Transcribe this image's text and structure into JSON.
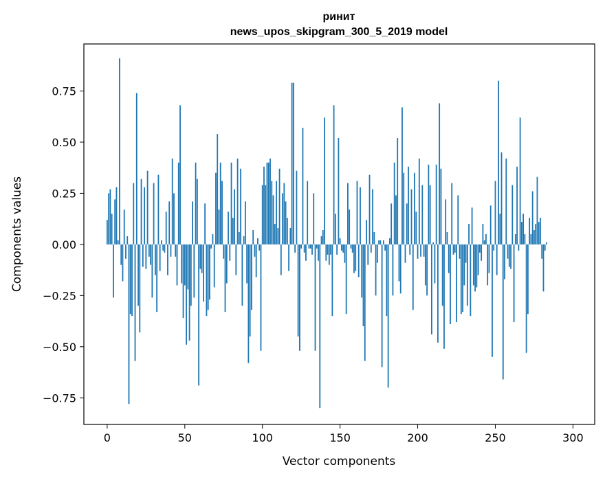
{
  "chart_data": {
    "type": "bar",
    "title": "ринит",
    "subtitle": "news_upos_skipgram_300_5_2019 model",
    "xlabel": "Vector components",
    "ylabel": "Components values",
    "xlim": [
      -15,
      314
    ],
    "ylim": [
      -0.88,
      0.98
    ],
    "x_ticks": [
      0,
      50,
      100,
      150,
      200,
      250,
      300
    ],
    "x_tick_labels": [
      "0",
      "50",
      "100",
      "150",
      "200",
      "250",
      "300"
    ],
    "y_ticks": [
      -0.75,
      -0.5,
      -0.25,
      0.0,
      0.25,
      0.5,
      0.75
    ],
    "y_tick_labels": [
      "−0.75",
      "−0.50",
      "−0.25",
      "0.00",
      "0.25",
      "0.50",
      "0.75"
    ],
    "bar_color": "#1f77b4",
    "series": [
      {
        "name": "components",
        "values": [
          0.12,
          0.25,
          0.27,
          0.15,
          -0.26,
          0.22,
          0.28,
          0.02,
          0.91,
          -0.1,
          -0.18,
          0.17,
          -0.07,
          0.04,
          -0.78,
          -0.34,
          -0.35,
          0.3,
          -0.57,
          0.74,
          -0.3,
          -0.43,
          0.32,
          -0.11,
          0.28,
          -0.12,
          0.36,
          -0.06,
          -0.1,
          -0.26,
          0.3,
          -0.15,
          -0.33,
          0.34,
          -0.13,
          0.02,
          -0.03,
          -0.04,
          0.16,
          -0.15,
          0.21,
          -0.06,
          0.42,
          0.25,
          -0.06,
          -0.2,
          0.4,
          0.68,
          -0.19,
          -0.36,
          -0.2,
          -0.49,
          -0.22,
          -0.47,
          -0.3,
          0.21,
          -0.26,
          0.4,
          0.32,
          -0.69,
          -0.12,
          -0.14,
          -0.28,
          0.2,
          -0.35,
          -0.32,
          -0.27,
          -0.02,
          0.05,
          -0.21,
          0.35,
          0.54,
          0.17,
          0.4,
          0.31,
          -0.07,
          -0.33,
          -0.19,
          0.16,
          -0.08,
          0.4,
          0.13,
          0.27,
          -0.15,
          0.42,
          0.06,
          0.37,
          -0.3,
          0.04,
          0.21,
          -0.19,
          -0.58,
          -0.45,
          -0.32,
          0.07,
          -0.06,
          -0.16,
          0.03,
          -0.03,
          -0.52,
          0.29,
          0.38,
          0.29,
          0.4,
          0.4,
          0.42,
          0.31,
          0.24,
          0.1,
          0.31,
          0.08,
          0.37,
          -0.15,
          0.25,
          0.3,
          0.21,
          0.13,
          -0.13,
          0.08,
          0.79,
          0.79,
          -0.04,
          0.36,
          -0.45,
          -0.52,
          -0.02,
          0.57,
          -0.04,
          -0.08,
          0.31,
          -0.02,
          -0.02,
          -0.05,
          0.25,
          -0.52,
          -0.02,
          -0.08,
          -0.8,
          0.04,
          0.07,
          0.62,
          -0.08,
          -0.05,
          -0.1,
          -0.05,
          -0.35,
          0.68,
          0.15,
          -0.05,
          0.52,
          0.03,
          -0.03,
          -0.04,
          -0.09,
          -0.34,
          0.3,
          0.17,
          -0.02,
          -0.04,
          -0.14,
          -0.13,
          0.31,
          -0.16,
          0.28,
          -0.26,
          -0.4,
          -0.57,
          0.12,
          -0.1,
          0.34,
          -0.04,
          0.27,
          0.06,
          -0.25,
          -0.09,
          0.02,
          0.02,
          -0.6,
          0.02,
          -0.03,
          -0.35,
          -0.7,
          0.03,
          0.2,
          -0.25,
          0.4,
          0.24,
          0.52,
          -0.18,
          -0.24,
          0.67,
          0.35,
          -0.09,
          0.2,
          0.38,
          -0.05,
          0.27,
          -0.32,
          0.35,
          0.16,
          -0.07,
          0.42,
          -0.06,
          0.29,
          -0.06,
          -0.2,
          -0.25,
          0.39,
          0.29,
          -0.44,
          0.01,
          -0.19,
          0.39,
          -0.48,
          0.69,
          0.37,
          -0.3,
          -0.51,
          0.22,
          0.06,
          -0.14,
          -0.39,
          0.3,
          -0.05,
          -0.04,
          -0.38,
          0.24,
          -0.07,
          -0.34,
          -0.33,
          -0.2,
          -0.09,
          -0.3,
          0.1,
          -0.35,
          0.18,
          -0.2,
          -0.23,
          -0.21,
          -0.15,
          -0.04,
          -0.08,
          0.1,
          0.02,
          0.05,
          -0.2,
          -0.14,
          0.19,
          -0.55,
          -0.03,
          0.31,
          -0.15,
          0.8,
          0.15,
          0.45,
          -0.66,
          -0.17,
          0.42,
          -0.07,
          -0.11,
          -0.12,
          0.29,
          -0.38,
          0.05,
          0.38,
          -0.03,
          0.62,
          0.11,
          0.15,
          0.05,
          -0.53,
          -0.34,
          0.13,
          0.05,
          0.26,
          0.07,
          0.1,
          0.33,
          0.11,
          0.13,
          -0.07,
          -0.23,
          -0.03,
          0.01
        ]
      }
    ]
  }
}
